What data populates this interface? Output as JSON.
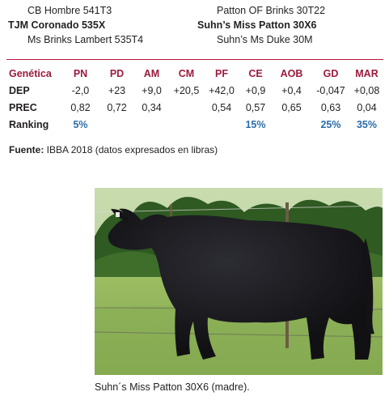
{
  "pedigree": {
    "sire_sire": "CB Hombre 541T3",
    "sire": "TJM Coronado 535X",
    "sire_dam": "Ms Brinks Lambert 535T4",
    "dam_sire": "Patton OF Brinks 30T22",
    "dam": "Suhn’s Miss Patton 30X6",
    "dam_dam": "Suhn’s Ms Duke 30M"
  },
  "table": {
    "headers": [
      "Genética",
      "PN",
      "PD",
      "AM",
      "CM",
      "PF",
      "CE",
      "AOB",
      "GD",
      "MAR"
    ],
    "rows": [
      {
        "label": "DEP",
        "values": [
          "-2,0",
          "+23",
          "+9,0",
          "+20,5",
          "+42,0",
          "+0,9",
          "+0,4",
          "-0,047",
          "+0,08"
        ]
      },
      {
        "label": "PREC",
        "values": [
          "0,82",
          "0,72",
          "0,34",
          "",
          "0,54",
          "0,57",
          "0,65",
          "0,63",
          "0,04"
        ]
      },
      {
        "label": "Ranking",
        "values": [
          "5%",
          "",
          "",
          "",
          "",
          "15%",
          "",
          "25%",
          "35%"
        ]
      }
    ]
  },
  "source": {
    "label": "Fuente:",
    "text": " IBBA 2018 (datos expresados en libras)"
  },
  "photo": {
    "subject": "black-cow",
    "colors": {
      "sky": "#a9c98a",
      "trees": "#2f5a22",
      "grass": "#8fb35a",
      "cow": "#16161a"
    }
  },
  "caption": "Suhn´s Miss Patton 30X6 (madre)."
}
